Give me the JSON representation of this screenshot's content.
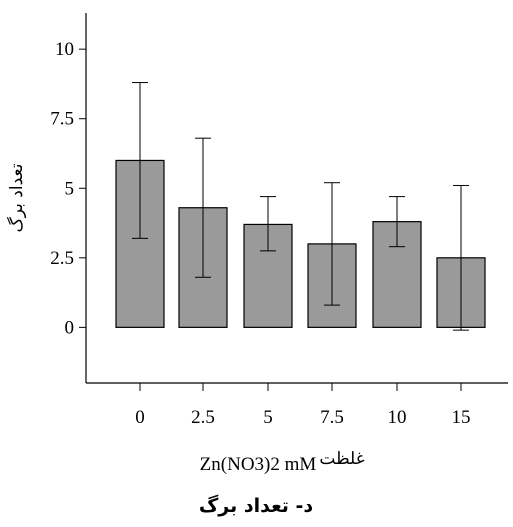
{
  "chart_data": {
    "type": "bar",
    "categories": [
      "0",
      "2.5",
      "5",
      "7.5",
      "10",
      "15"
    ],
    "values": [
      6.0,
      4.3,
      3.7,
      3.0,
      3.8,
      2.5
    ],
    "error_low": [
      3.2,
      1.8,
      2.75,
      0.8,
      2.9,
      -0.1
    ],
    "error_high": [
      8.8,
      6.8,
      4.7,
      5.2,
      4.7,
      5.1
    ],
    "y_ticks": [
      "0",
      "2.5",
      "5",
      "7.5",
      "10"
    ],
    "y_tick_values": [
      0,
      2.5,
      5,
      7.5,
      10
    ],
    "ylim": [
      -2.0,
      11.3
    ],
    "xlabel": "Zn(NO3)2 mM",
    "xlabel_prefix": "غلظت",
    "ylabel": "تعداد برگ",
    "caption": "د- تعداد برگ",
    "bar_color": "#9a9a9a",
    "grid": false,
    "legend": "none"
  }
}
